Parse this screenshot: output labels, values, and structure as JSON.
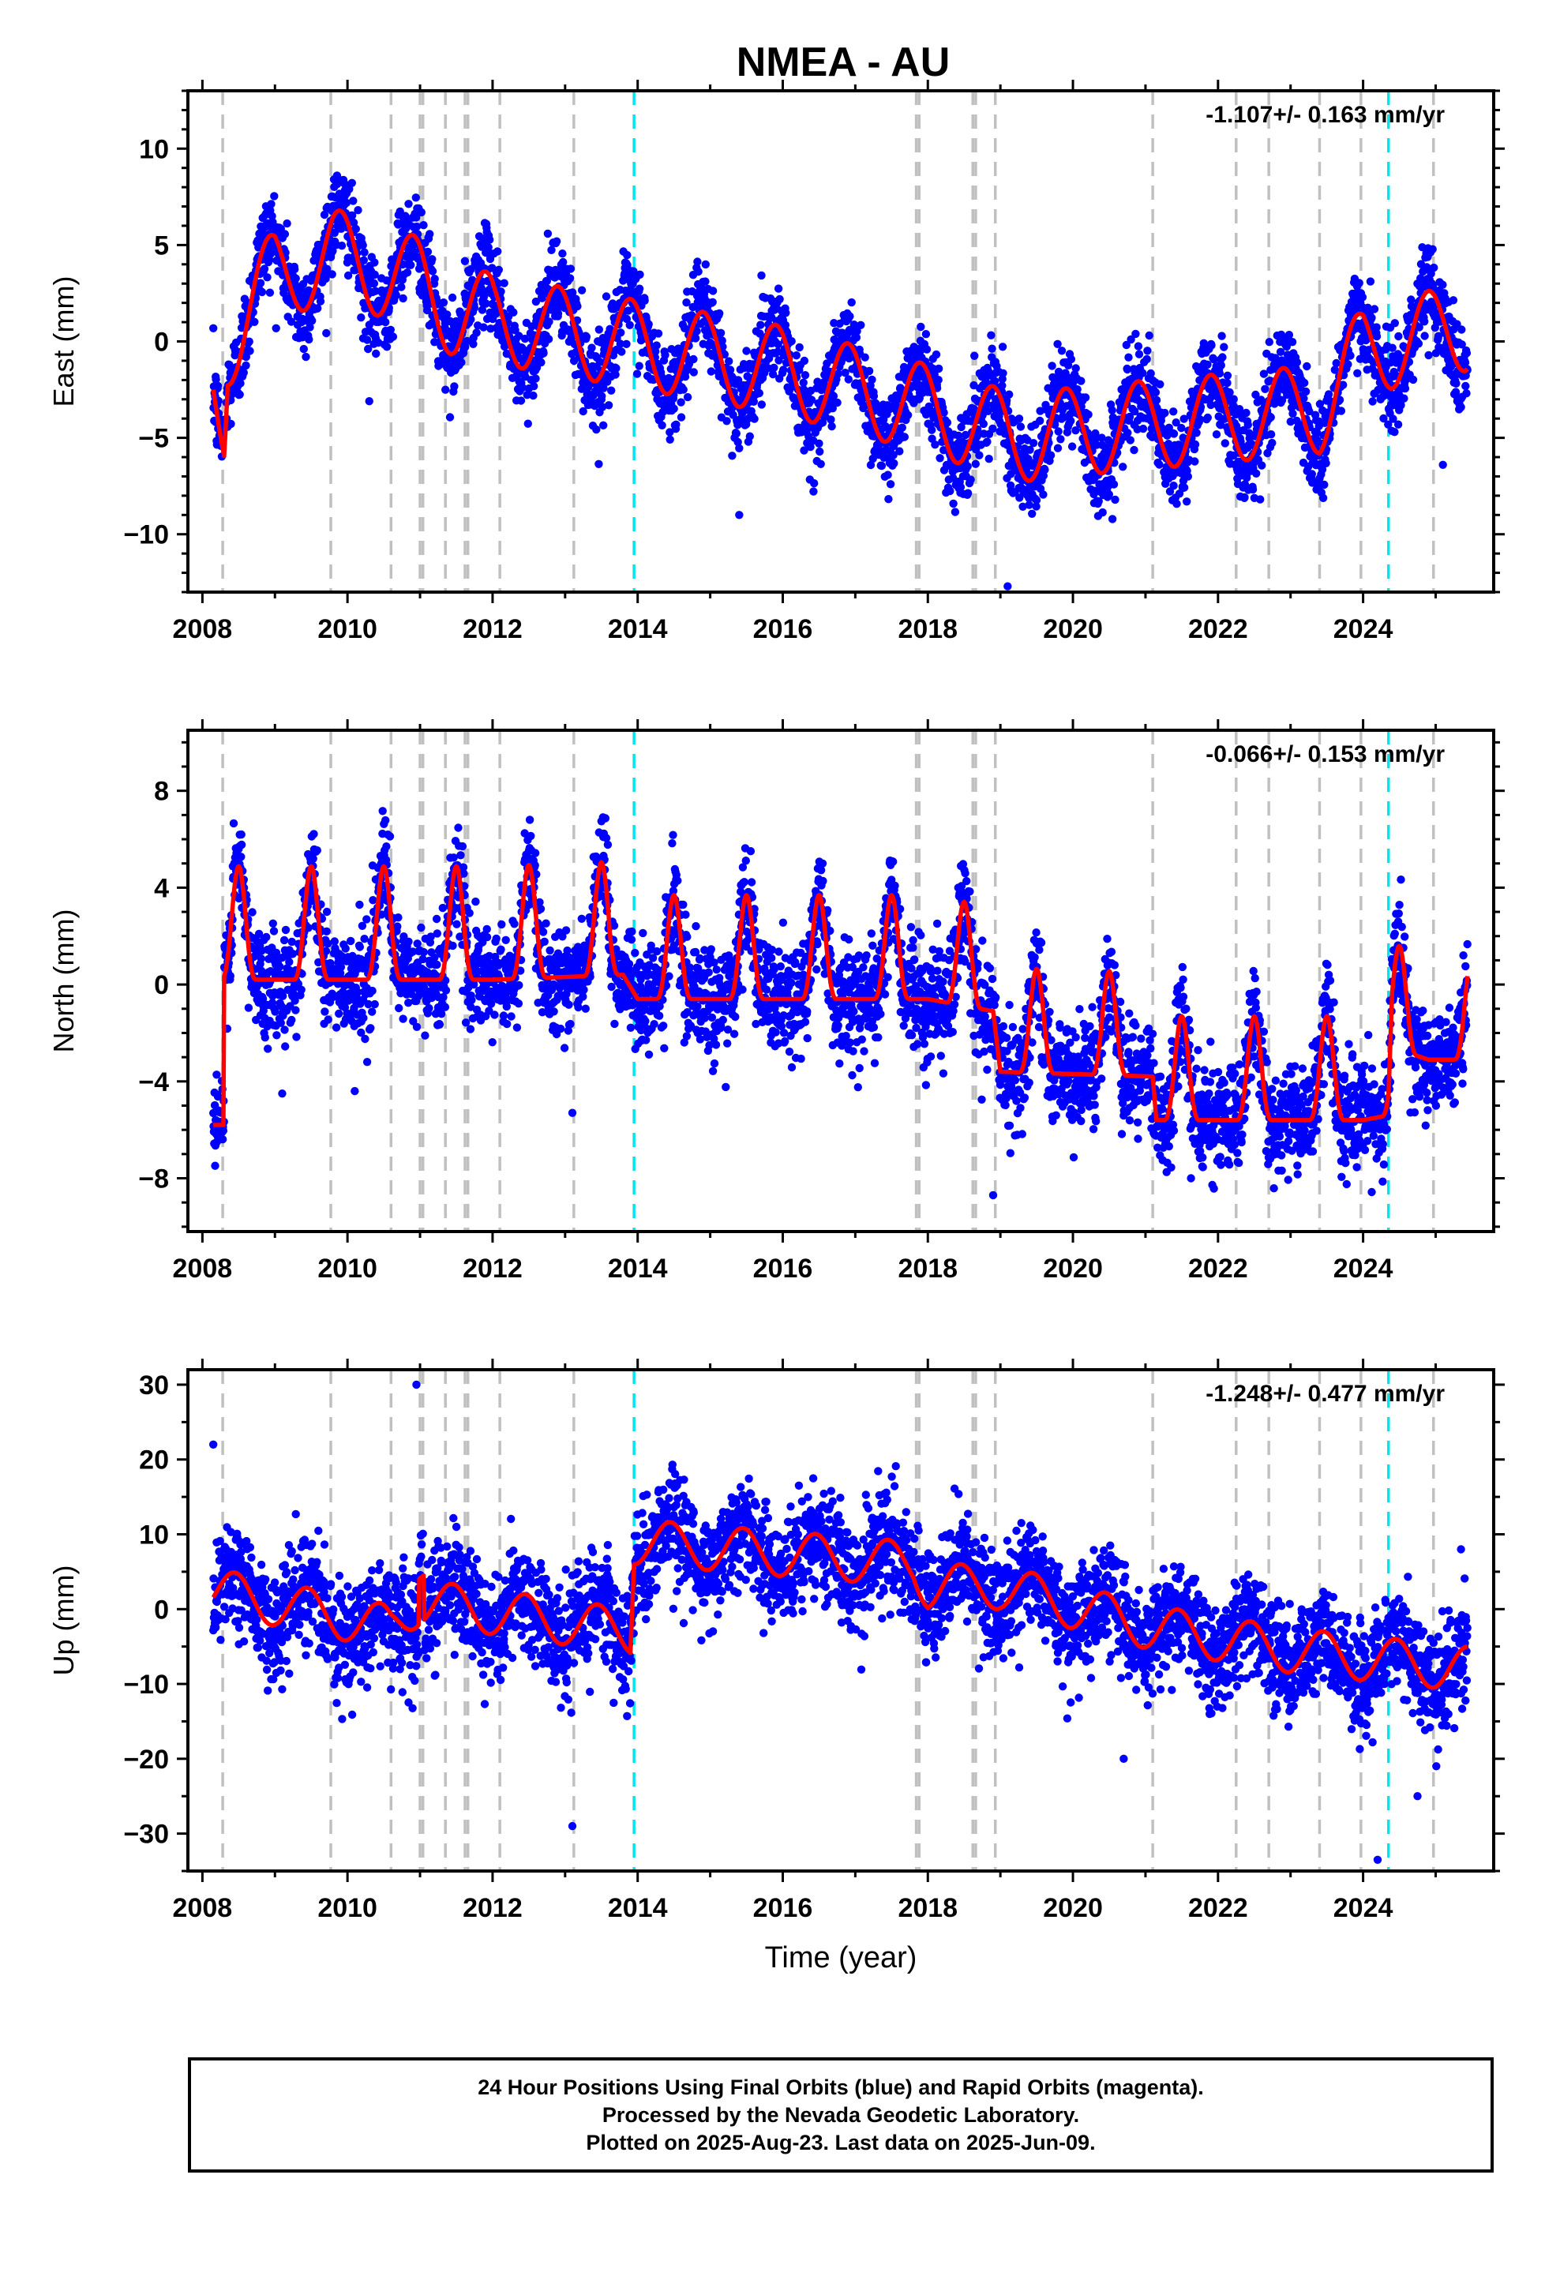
{
  "title": "NMEA - AU",
  "colors": {
    "final_orbit_points": "#0000ff",
    "model_fit": "#ff0000",
    "event_line": "#c0c0c0",
    "equipment_change_line": "#00e5ee"
  },
  "event_years": [
    2008.28,
    2009.77,
    2010.6,
    2011.0,
    2011.04,
    2011.35,
    2011.62,
    2011.66,
    2012.1,
    2013.12,
    2017.84,
    2017.88,
    2018.62,
    2018.66,
    2018.93,
    2021.1,
    2022.25,
    2022.7,
    2023.4,
    2023.97,
    2024.97
  ],
  "cyan_years": [
    2013.95,
    2024.35
  ],
  "chart_data": [
    {
      "type": "scatter",
      "panel": "east",
      "ylabel": "East (mm)",
      "xlabel": "",
      "rate_label": "-1.107+/- 0.163 mm/yr",
      "xlim": [
        2007.8,
        2025.8
      ],
      "ylim": [
        -13,
        13
      ],
      "xticks": [
        "2008",
        "2010",
        "2012",
        "2014",
        "2016",
        "2018",
        "2020",
        "2022",
        "2024"
      ],
      "yticks": [
        "10",
        "5",
        "0",
        "−5",
        "−10"
      ],
      "series": [
        {
          "name": "Final Orbits",
          "style": "points",
          "start": 2008.15,
          "end": 2025.44,
          "trend": -0.55,
          "trend_anchor": 2008.15,
          "segments": [
            [
              2008.15,
              2.0
            ],
            [
              2008.6,
              4.5
            ],
            [
              2010.0,
              3.0
            ],
            [
              2011.2,
              0.0
            ],
            [
              2013.0,
              -1.8
            ],
            [
              2016.0,
              -4.5
            ],
            [
              2019.2,
              -7.5
            ],
            [
              2021.0,
              -6.5
            ],
            [
              2023.5,
              -2.5
            ],
            [
              2025.44,
              0.5
            ]
          ],
          "amplitude": 2.0,
          "phase": 0.3,
          "noise": 1.3
        },
        {
          "name": "Model",
          "style": "line"
        }
      ],
      "annotations": [
        {
          "label": "outlier",
          "x": 2015.4,
          "y": -9.0
        },
        {
          "label": "outlier",
          "x": 2019.1,
          "y": -12.7
        },
        {
          "label": "outlier",
          "x": 2025.1,
          "y": -6.4
        },
        {
          "label": "outlier",
          "x": 2010.3,
          "y": -3.1
        }
      ]
    },
    {
      "type": "scatter",
      "panel": "north",
      "ylabel": "North (mm)",
      "xlabel": "",
      "rate_label": "-0.066+/- 0.153 mm/yr",
      "xlim": [
        2007.8,
        2025.8
      ],
      "ylim": [
        -10.2,
        10.5
      ],
      "xticks": [
        "2008",
        "2010",
        "2012",
        "2014",
        "2016",
        "2018",
        "2020",
        "2022",
        "2024"
      ],
      "yticks": [
        "8",
        "4",
        "0",
        "−4",
        "−8"
      ],
      "series": [
        {
          "name": "Final Orbits",
          "style": "points"
        },
        {
          "name": "Model",
          "style": "line"
        }
      ],
      "annotations": [
        {
          "label": "outlier",
          "x": 2013.1,
          "y": -5.3
        },
        {
          "label": "outlier",
          "x": 2018.9,
          "y": -8.7
        },
        {
          "label": "outlier",
          "x": 2009.1,
          "y": -4.5
        },
        {
          "label": "outlier",
          "x": 2010.1,
          "y": -4.4
        }
      ]
    },
    {
      "type": "scatter",
      "panel": "up",
      "ylabel": "Up (mm)",
      "xlabel": "Time (year)",
      "rate_label": "-1.248+/- 0.477 mm/yr",
      "xlim": [
        2007.8,
        2025.8
      ],
      "ylim": [
        -35,
        32
      ],
      "xticks": [
        "2008",
        "2010",
        "2012",
        "2014",
        "2016",
        "2018",
        "2020",
        "2022",
        "2024"
      ],
      "yticks": [
        "30",
        "20",
        "10",
        "0",
        "−10",
        "−20",
        "−30"
      ],
      "series": [
        {
          "name": "Final Orbits",
          "style": "points"
        },
        {
          "name": "Model",
          "style": "line"
        }
      ],
      "annotations": [
        {
          "label": "outlier",
          "x": 2010.95,
          "y": 30
        },
        {
          "label": "outlier",
          "x": 2013.1,
          "y": -29
        },
        {
          "label": "outlier",
          "x": 2024.2,
          "y": -33.5
        },
        {
          "label": "outlier",
          "x": 2024.75,
          "y": -25
        },
        {
          "label": "outlier",
          "x": 2020.7,
          "y": -20
        },
        {
          "label": "outlier",
          "x": 2008.15,
          "y": 22
        }
      ]
    }
  ],
  "footer": {
    "line1": "24 Hour Positions Using Final Orbits (blue) and Rapid Orbits (magenta).",
    "line2": "Processed by the Nevada Geodetic Laboratory.",
    "line3": "Plotted on 2025-Aug-23. Last data on 2025-Jun-09."
  }
}
